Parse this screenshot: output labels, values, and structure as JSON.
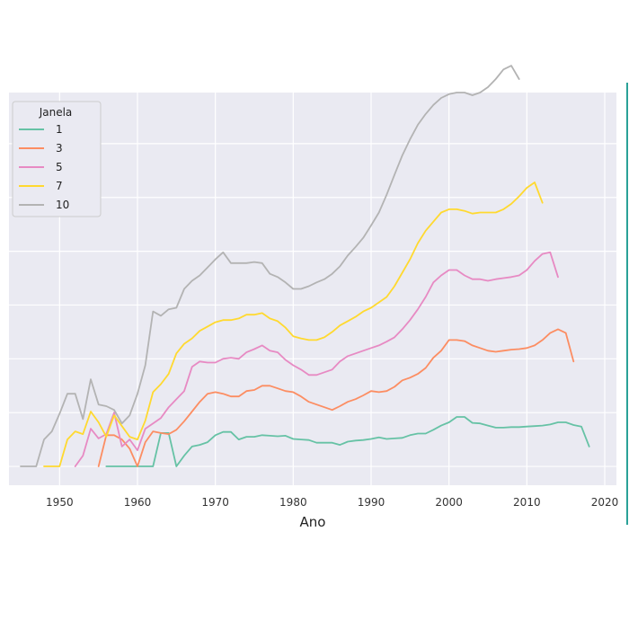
{
  "chart_data": {
    "type": "line",
    "title": "",
    "xlabel": "Ano",
    "ylabel": "",
    "xlim": [
      1943.5,
      2021.5
    ],
    "ylim": [
      -0.35,
      6.95
    ],
    "xticks": [
      1950,
      1960,
      1970,
      1980,
      1990,
      2000,
      2010,
      2020
    ],
    "yticks": [
      0,
      1,
      2,
      3,
      4,
      5,
      6
    ],
    "ytick_labels": [
      "",
      "",
      "",
      "",
      "",
      "",
      ""
    ],
    "grid": true,
    "legend": {
      "title": "Janela",
      "placement": "top-left"
    },
    "series": [
      {
        "name": "1",
        "color": "#66c2a5",
        "x": [
          1956,
          1957,
          1958,
          1959,
          1960,
          1961,
          1962,
          1963,
          1964,
          1965,
          1966,
          1967,
          1968,
          1969,
          1970,
          1971,
          1972,
          1973,
          1974,
          1975,
          1976,
          1977,
          1978,
          1979,
          1980,
          1981,
          1982,
          1983,
          1984,
          1985,
          1986,
          1987,
          1988,
          1989,
          1990,
          1991,
          1992,
          1993,
          1994,
          1995,
          1996,
          1997,
          1998,
          1999,
          2000,
          2001,
          2002,
          2003,
          2004,
          2005,
          2006,
          2007,
          2008,
          2009,
          2010,
          2011,
          2012,
          2013,
          2014,
          2015,
          2016,
          2017,
          2018
        ],
        "y": [
          0,
          0,
          0,
          0,
          0,
          0,
          0,
          0.62,
          0.62,
          0,
          0.2,
          0.37,
          0.4,
          0.45,
          0.58,
          0.64,
          0.64,
          0.5,
          0.55,
          0.55,
          0.58,
          0.57,
          0.56,
          0.57,
          0.51,
          0.5,
          0.49,
          0.44,
          0.44,
          0.44,
          0.4,
          0.46,
          0.48,
          0.49,
          0.51,
          0.54,
          0.51,
          0.52,
          0.53,
          0.58,
          0.61,
          0.61,
          0.68,
          0.76,
          0.82,
          0.92,
          0.92,
          0.81,
          0.8,
          0.76,
          0.72,
          0.72,
          0.73,
          0.73,
          0.74,
          0.75,
          0.76,
          0.78,
          0.82,
          0.82,
          0.77,
          0.74,
          0.37
        ]
      },
      {
        "name": "3",
        "color": "#fc8d62",
        "x": [
          1955,
          1956,
          1957,
          1958,
          1959,
          1960,
          1961,
          1962,
          1963,
          1964,
          1965,
          1966,
          1967,
          1968,
          1969,
          1970,
          1971,
          1972,
          1973,
          1974,
          1975,
          1976,
          1977,
          1978,
          1979,
          1980,
          1981,
          1982,
          1983,
          1984,
          1985,
          1986,
          1987,
          1988,
          1989,
          1990,
          1991,
          1992,
          1993,
          1994,
          1995,
          1996,
          1997,
          1998,
          1999,
          2000,
          2001,
          2002,
          2003,
          2004,
          2005,
          2006,
          2007,
          2008,
          2009,
          2010,
          2011,
          2012,
          2013,
          2014,
          2015,
          2016
        ],
        "y": [
          0,
          0.58,
          0.58,
          0.5,
          0.33,
          0,
          0.45,
          0.65,
          0.62,
          0.6,
          0.68,
          0.84,
          1.02,
          1.2,
          1.35,
          1.38,
          1.35,
          1.3,
          1.3,
          1.4,
          1.42,
          1.5,
          1.5,
          1.45,
          1.4,
          1.38,
          1.3,
          1.2,
          1.15,
          1.1,
          1.05,
          1.12,
          1.2,
          1.25,
          1.32,
          1.4,
          1.38,
          1.4,
          1.48,
          1.6,
          1.65,
          1.72,
          1.83,
          2.02,
          2.15,
          2.35,
          2.35,
          2.33,
          2.25,
          2.2,
          2.15,
          2.13,
          2.15,
          2.17,
          2.18,
          2.2,
          2.25,
          2.35,
          2.48,
          2.55,
          2.48,
          1.95
        ]
      },
      {
        "name": "5",
        "color": "#e78ac3",
        "x": [
          1952,
          1953,
          1954,
          1955,
          1956,
          1957,
          1958,
          1959,
          1960,
          1961,
          1962,
          1963,
          1964,
          1965,
          1966,
          1967,
          1968,
          1969,
          1970,
          1971,
          1972,
          1973,
          1974,
          1975,
          1976,
          1977,
          1978,
          1979,
          1980,
          1981,
          1982,
          1983,
          1984,
          1985,
          1986,
          1987,
          1988,
          1989,
          1990,
          1991,
          1992,
          1993,
          1994,
          1995,
          1996,
          1997,
          1998,
          1999,
          2000,
          2001,
          2002,
          2003,
          2004,
          2005,
          2006,
          2007,
          2008,
          2009,
          2010,
          2011,
          2012,
          2013,
          2014
        ],
        "y": [
          0,
          0.2,
          0.7,
          0.52,
          0.6,
          1.0,
          0.37,
          0.5,
          0.3,
          0.7,
          0.8,
          0.9,
          1.1,
          1.25,
          1.4,
          1.85,
          1.95,
          1.93,
          1.93,
          2.0,
          2.02,
          2.0,
          2.12,
          2.18,
          2.25,
          2.15,
          2.12,
          1.98,
          1.88,
          1.8,
          1.7,
          1.7,
          1.75,
          1.8,
          1.95,
          2.05,
          2.1,
          2.15,
          2.2,
          2.25,
          2.32,
          2.4,
          2.55,
          2.72,
          2.92,
          3.15,
          3.42,
          3.55,
          3.65,
          3.65,
          3.55,
          3.48,
          3.48,
          3.45,
          3.48,
          3.5,
          3.52,
          3.55,
          3.65,
          3.82,
          3.95,
          3.98,
          3.52
        ]
      },
      {
        "name": "7",
        "color": "#ffd92f",
        "x": [
          1948,
          1949,
          1950,
          1951,
          1952,
          1953,
          1954,
          1955,
          1956,
          1957,
          1958,
          1959,
          1960,
          1961,
          1962,
          1963,
          1964,
          1965,
          1966,
          1967,
          1968,
          1969,
          1970,
          1971,
          1972,
          1973,
          1974,
          1975,
          1976,
          1977,
          1978,
          1979,
          1980,
          1981,
          1982,
          1983,
          1984,
          1985,
          1986,
          1987,
          1988,
          1989,
          1990,
          1991,
          1992,
          1993,
          1994,
          1995,
          1996,
          1997,
          1998,
          1999,
          2000,
          2001,
          2002,
          2003,
          2004,
          2005,
          2006,
          2007,
          2008,
          2009,
          2010,
          2011,
          2012
        ],
        "y": [
          0,
          0,
          0,
          0.5,
          0.65,
          0.6,
          1.02,
          0.82,
          0.55,
          0.95,
          0.75,
          0.55,
          0.5,
          0.85,
          1.38,
          1.53,
          1.72,
          2.1,
          2.28,
          2.38,
          2.52,
          2.6,
          2.68,
          2.72,
          2.72,
          2.75,
          2.82,
          2.82,
          2.85,
          2.75,
          2.7,
          2.58,
          2.42,
          2.38,
          2.35,
          2.35,
          2.4,
          2.5,
          2.62,
          2.7,
          2.78,
          2.88,
          2.95,
          3.05,
          3.15,
          3.35,
          3.6,
          3.85,
          4.15,
          4.38,
          4.55,
          4.72,
          4.78,
          4.78,
          4.75,
          4.7,
          4.72,
          4.72,
          4.72,
          4.78,
          4.88,
          5.02,
          5.18,
          5.28,
          4.9
        ]
      },
      {
        "name": "10",
        "color": "#b3b3b3",
        "x": [
          1945,
          1946,
          1947,
          1948,
          1949,
          1950,
          1951,
          1952,
          1953,
          1954,
          1955,
          1956,
          1957,
          1958,
          1959,
          1960,
          1961,
          1962,
          1963,
          1964,
          1965,
          1966,
          1967,
          1968,
          1969,
          1970,
          1971,
          1972,
          1973,
          1974,
          1975,
          1976,
          1977,
          1978,
          1979,
          1980,
          1981,
          1982,
          1983,
          1984,
          1985,
          1986,
          1987,
          1988,
          1989,
          1990,
          1991,
          1992,
          1993,
          1994,
          1995,
          1996,
          1997,
          1998,
          1999,
          2000,
          2001,
          2002,
          2003,
          2004,
          2005,
          2006,
          2007,
          2008,
          2009
        ],
        "y": [
          0,
          0,
          0,
          0.5,
          0.65,
          0.98,
          1.35,
          1.35,
          0.88,
          1.62,
          1.15,
          1.12,
          1.05,
          0.8,
          0.95,
          1.35,
          1.88,
          2.88,
          2.8,
          2.92,
          2.95,
          3.3,
          3.45,
          3.55,
          3.7,
          3.85,
          3.98,
          3.78,
          3.78,
          3.78,
          3.8,
          3.78,
          3.58,
          3.52,
          3.42,
          3.3,
          3.3,
          3.35,
          3.42,
          3.48,
          3.58,
          3.72,
          3.92,
          4.08,
          4.25,
          4.48,
          4.72,
          5.05,
          5.42,
          5.78,
          6.08,
          6.35,
          6.55,
          6.72,
          6.85,
          6.92,
          6.95,
          6.95,
          6.9,
          6.95,
          7.05,
          7.2,
          7.38,
          7.45,
          7.2
        ]
      }
    ]
  }
}
